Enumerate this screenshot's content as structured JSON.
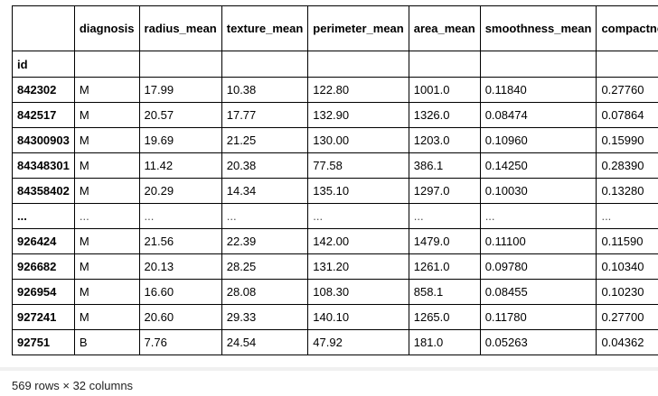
{
  "table": {
    "columns": [
      "",
      "diagnosis",
      "radius_mean",
      "texture_mean",
      "perimeter_mean",
      "area_mean",
      "smoothness_mean",
      "compactness_mean"
    ],
    "index_name": "id",
    "rows": [
      [
        "842302",
        "M",
        "17.99",
        "10.38",
        "122.80",
        "1001.0",
        "0.11840",
        "0.27760"
      ],
      [
        "842517",
        "M",
        "20.57",
        "17.77",
        "132.90",
        "1326.0",
        "0.08474",
        "0.07864"
      ],
      [
        "84300903",
        "M",
        "19.69",
        "21.25",
        "130.00",
        "1203.0",
        "0.10960",
        "0.15990"
      ],
      [
        "84348301",
        "M",
        "11.42",
        "20.38",
        "77.58",
        "386.1",
        "0.14250",
        "0.28390"
      ],
      [
        "84358402",
        "M",
        "20.29",
        "14.34",
        "135.10",
        "1297.0",
        "0.10030",
        "0.13280"
      ],
      [
        "...",
        "...",
        "...",
        "...",
        "...",
        "...",
        "...",
        "..."
      ],
      [
        "926424",
        "M",
        "21.56",
        "22.39",
        "142.00",
        "1479.0",
        "0.11100",
        "0.11590"
      ],
      [
        "926682",
        "M",
        "20.13",
        "28.25",
        "131.20",
        "1261.0",
        "0.09780",
        "0.10340"
      ],
      [
        "926954",
        "M",
        "16.60",
        "28.08",
        "108.30",
        "858.1",
        "0.08455",
        "0.10230"
      ],
      [
        "927241",
        "M",
        "20.60",
        "29.33",
        "140.10",
        "1265.0",
        "0.11780",
        "0.27700"
      ],
      [
        "92751",
        "B",
        "7.76",
        "24.54",
        "47.92",
        "181.0",
        "0.05263",
        "0.04362"
      ]
    ]
  },
  "footer": "569 rows × 32 columns"
}
